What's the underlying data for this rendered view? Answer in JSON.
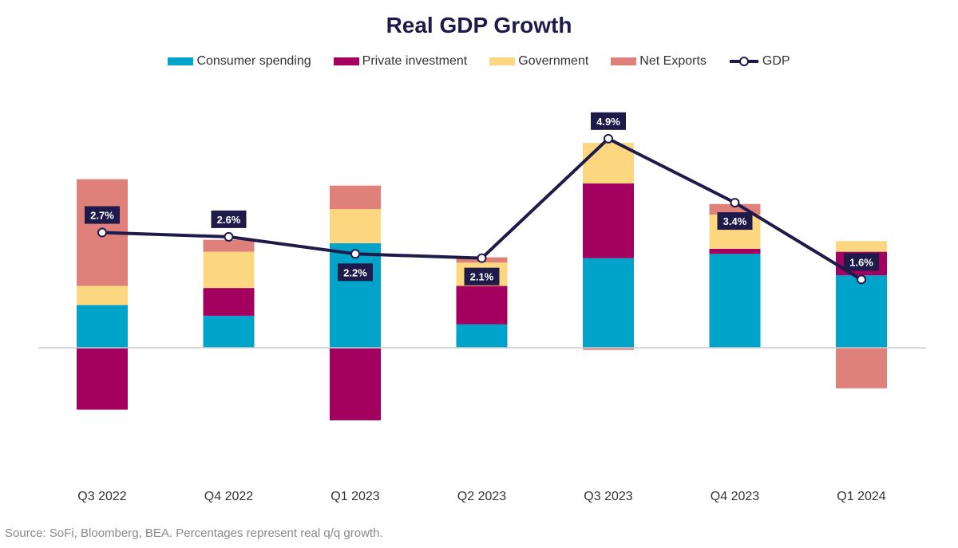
{
  "chart_data": {
    "type": "bar",
    "stacked": true,
    "title": "Real GDP Growth",
    "categories": [
      "Q3 2022",
      "Q4 2022",
      "Q1 2023",
      "Q2 2023",
      "Q3 2023",
      "Q4 2023",
      "Q1 2024"
    ],
    "series": [
      {
        "name": "Consumer spending",
        "color": "#00a3c9",
        "values": [
          1.0,
          0.75,
          2.45,
          0.55,
          2.1,
          2.2,
          1.7
        ]
      },
      {
        "name": "Private investment",
        "color": "#a3005f",
        "values": [
          -1.45,
          0.65,
          -1.7,
          0.9,
          1.75,
          0.12,
          0.55
        ]
      },
      {
        "name": "Government",
        "color": "#fcd77f",
        "values": [
          0.45,
          0.85,
          0.8,
          0.55,
          0.95,
          0.8,
          0.25
        ]
      },
      {
        "name": "Net Exports",
        "color": "#e0807a",
        "values": [
          2.5,
          0.28,
          0.55,
          0.12,
          -0.05,
          0.25,
          -0.95
        ]
      }
    ],
    "line": {
      "name": "GDP",
      "color": "#1e1b4b",
      "values": [
        2.7,
        2.6,
        2.2,
        2.1,
        4.9,
        3.4,
        1.6
      ],
      "labels": [
        "2.7%",
        "2.6%",
        "2.2%",
        "2.1%",
        "4.9%",
        "3.4%",
        "1.6%"
      ],
      "label_position": [
        "above",
        "above",
        "below",
        "below",
        "above",
        "below",
        "above"
      ]
    },
    "ylim": [
      -2.8,
      6.2
    ],
    "grid": false,
    "xlabel": "",
    "ylabel": "",
    "legend": "top-center"
  },
  "source_note": "Source: SoFi, Bloomberg, BEA. Percentages represent real q/q growth."
}
